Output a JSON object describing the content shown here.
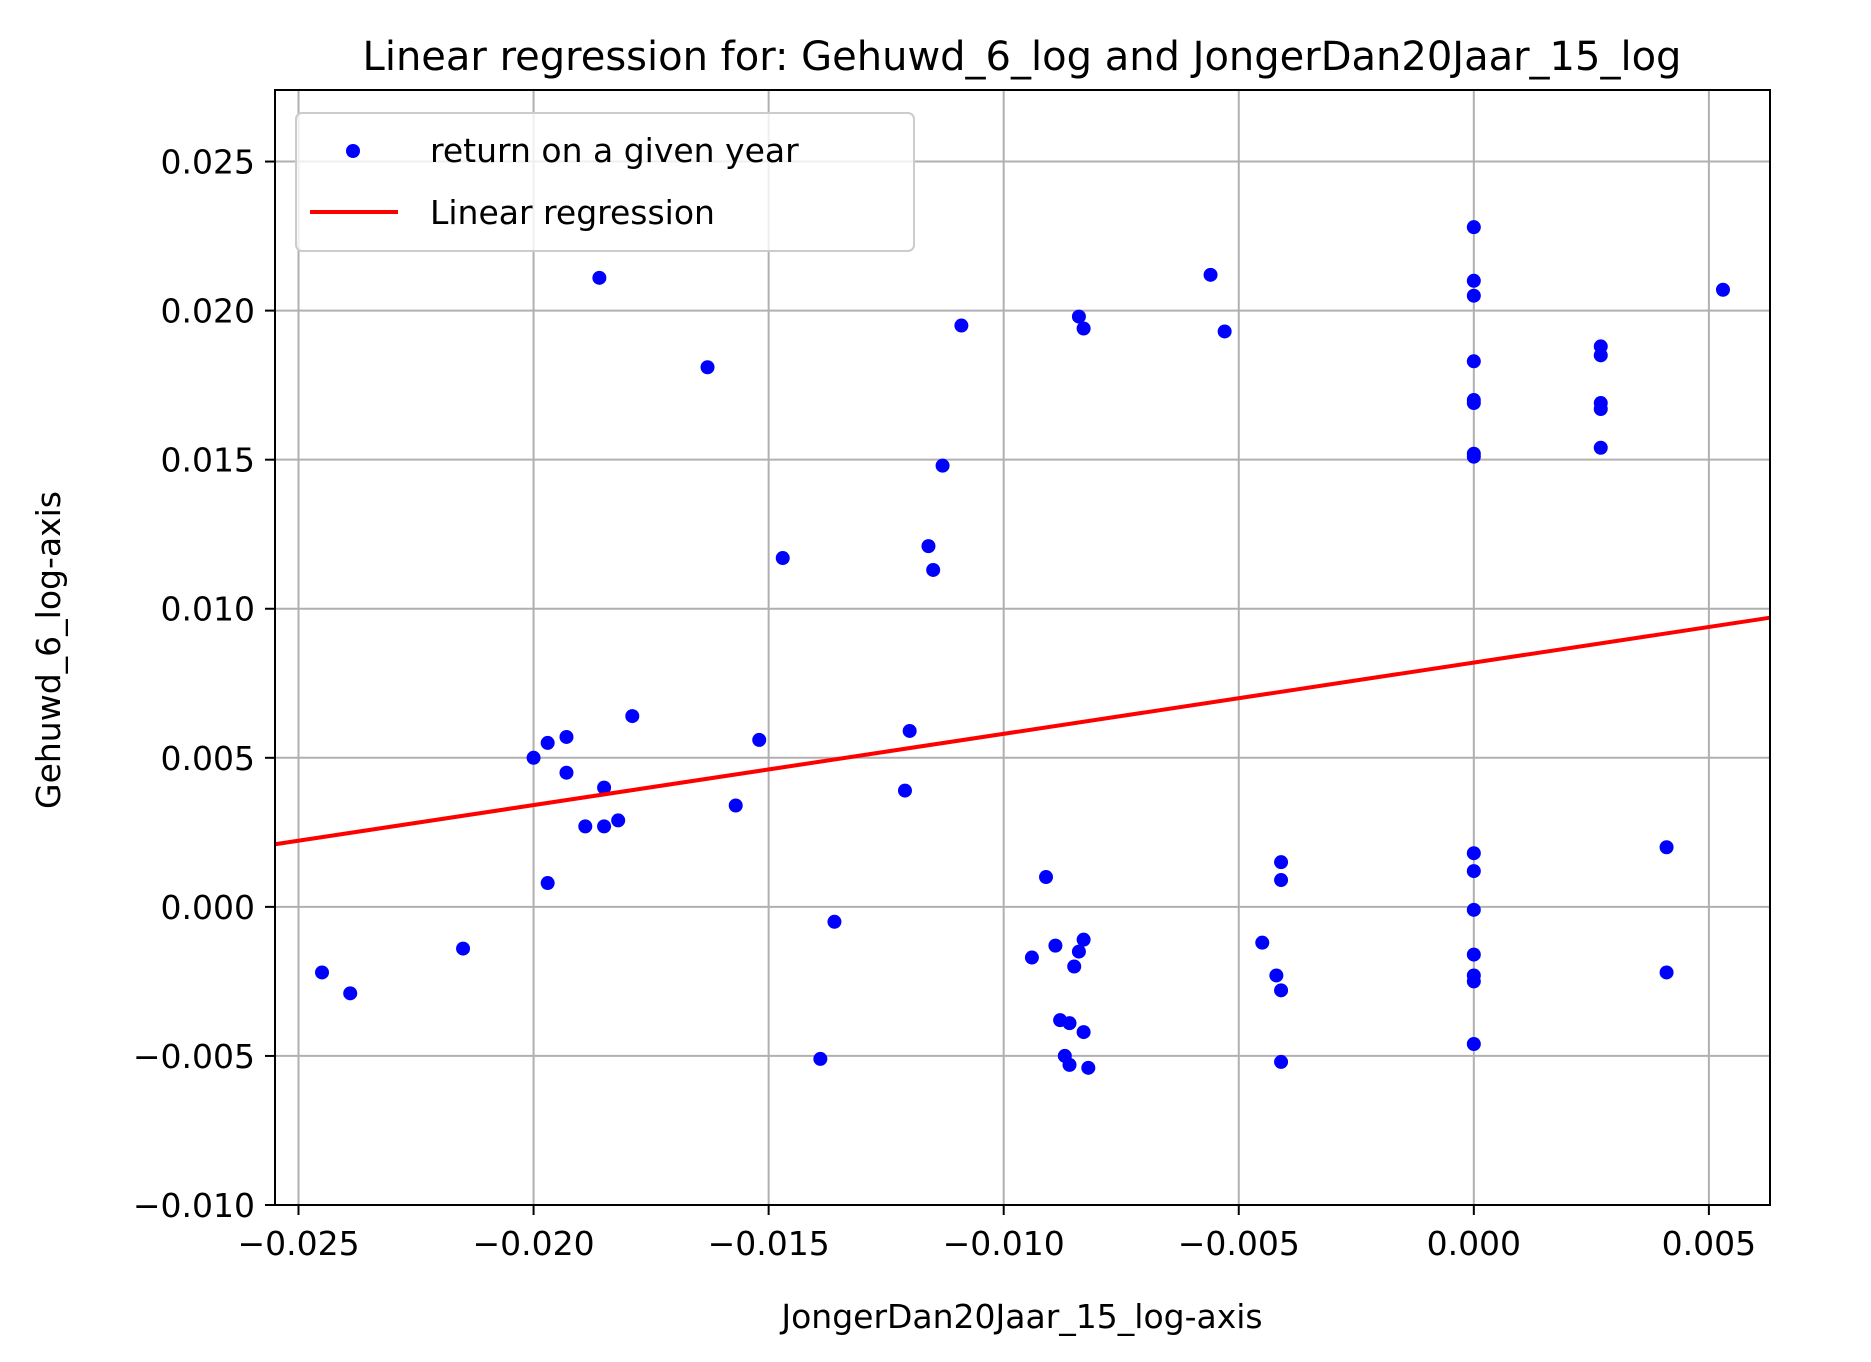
{
  "chart_data": {
    "type": "scatter",
    "title": "Linear regression for: Gehuwd_6_log and JongerDan20Jaar_15_log",
    "xlabel": "JongerDan20Jaar_15_log-axis",
    "ylabel": "Gehuwd_6_log-axis",
    "xlim": [
      -0.0255,
      0.0063
    ],
    "ylim": [
      -0.01,
      0.0274
    ],
    "xticks": [
      -0.025,
      -0.02,
      -0.015,
      -0.01,
      -0.005,
      0.0,
      0.005
    ],
    "xtick_labels": [
      "−0.025",
      "−0.020",
      "−0.015",
      "−0.010",
      "−0.005",
      "0.000",
      "0.005"
    ],
    "yticks": [
      -0.01,
      -0.005,
      0.0,
      0.005,
      0.01,
      0.015,
      0.02,
      0.025
    ],
    "ytick_labels": [
      "−0.010",
      "−0.005",
      "0.000",
      "0.005",
      "0.010",
      "0.015",
      "0.020",
      "0.025"
    ],
    "grid": true,
    "legend_position": "upper-left",
    "series": [
      {
        "name": "return on a given year",
        "type": "scatter",
        "color": "#0000ff",
        "points": [
          [
            -0.0245,
            -0.0022
          ],
          [
            -0.0239,
            -0.0029
          ],
          [
            -0.0215,
            -0.0014
          ],
          [
            -0.02,
            0.005
          ],
          [
            -0.0197,
            0.0055
          ],
          [
            -0.0197,
            0.0008
          ],
          [
            -0.0193,
            0.0057
          ],
          [
            -0.0193,
            0.0045
          ],
          [
            -0.0189,
            0.0027
          ],
          [
            -0.0186,
            0.0211
          ],
          [
            -0.0185,
            0.004
          ],
          [
            -0.0185,
            0.0027
          ],
          [
            -0.0182,
            0.0029
          ],
          [
            -0.0179,
            0.0064
          ],
          [
            -0.0163,
            0.0181
          ],
          [
            -0.0157,
            0.0034
          ],
          [
            -0.0152,
            0.0056
          ],
          [
            -0.0147,
            0.0117
          ],
          [
            -0.0139,
            -0.0051
          ],
          [
            -0.0136,
            -0.0005
          ],
          [
            -0.0121,
            0.0039
          ],
          [
            -0.012,
            0.0059
          ],
          [
            -0.0116,
            0.0121
          ],
          [
            -0.0115,
            0.0113
          ],
          [
            -0.0113,
            0.0148
          ],
          [
            -0.0109,
            0.0195
          ],
          [
            -0.0094,
            -0.0017
          ],
          [
            -0.0091,
            0.001
          ],
          [
            -0.0089,
            -0.0013
          ],
          [
            -0.0088,
            -0.0038
          ],
          [
            -0.0087,
            -0.005
          ],
          [
            -0.0086,
            -0.0053
          ],
          [
            -0.0086,
            -0.0039
          ],
          [
            -0.0085,
            -0.002
          ],
          [
            -0.0084,
            -0.0015
          ],
          [
            -0.0084,
            0.0198
          ],
          [
            -0.0083,
            -0.0011
          ],
          [
            -0.0083,
            0.0194
          ],
          [
            -0.0083,
            -0.0042
          ],
          [
            -0.0082,
            -0.0054
          ],
          [
            -0.0056,
            0.0212
          ],
          [
            -0.0053,
            0.0193
          ],
          [
            -0.0045,
            -0.0012
          ],
          [
            -0.0042,
            -0.0023
          ],
          [
            -0.0041,
            -0.0028
          ],
          [
            -0.0041,
            0.0015
          ],
          [
            -0.0041,
            0.0009
          ],
          [
            -0.0041,
            -0.0052
          ],
          [
            0.0,
            0.0228
          ],
          [
            0.0,
            0.021
          ],
          [
            0.0,
            0.0205
          ],
          [
            0.0,
            0.0183
          ],
          [
            0.0,
            0.017
          ],
          [
            0.0,
            0.0169
          ],
          [
            0.0,
            0.0152
          ],
          [
            0.0,
            0.0151
          ],
          [
            0.0,
            0.0018
          ],
          [
            0.0,
            0.0012
          ],
          [
            0.0,
            -0.0001
          ],
          [
            0.0,
            -0.0016
          ],
          [
            0.0,
            -0.0023
          ],
          [
            0.0,
            -0.0025
          ],
          [
            0.0,
            -0.0046
          ],
          [
            0.0027,
            0.0188
          ],
          [
            0.0027,
            0.0185
          ],
          [
            0.0027,
            0.0169
          ],
          [
            0.0027,
            0.0167
          ],
          [
            0.0027,
            0.0154
          ],
          [
            0.0041,
            0.002
          ],
          [
            0.0041,
            -0.0022
          ],
          [
            0.0053,
            0.0207
          ]
        ]
      },
      {
        "name": "Linear regression",
        "type": "line",
        "color": "#ff0000",
        "points": [
          [
            -0.0255,
            0.0021
          ],
          [
            0.0063,
            0.0097
          ]
        ]
      }
    ]
  }
}
